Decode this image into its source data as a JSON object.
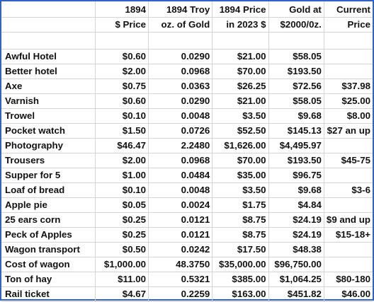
{
  "header": {
    "row1": [
      "",
      "1894",
      "1894 Troy",
      "1894 Price",
      "Gold at",
      "Current"
    ],
    "row2": [
      "",
      "$ Price",
      "oz. of Gold",
      "in 2023 $",
      "$2000/0z.",
      "Price"
    ]
  },
  "rows": [
    {
      "item": "Awful Hotel",
      "price_1894": "$0.60",
      "troy_oz": "0.0290",
      "price_2023": "$21.00",
      "gold_value": "$58.05",
      "current": ""
    },
    {
      "item": "Better hotel",
      "price_1894": "$2.00",
      "troy_oz": "0.0968",
      "price_2023": "$70.00",
      "gold_value": "$193.50",
      "current": ""
    },
    {
      "item": "Axe",
      "price_1894": "$0.75",
      "troy_oz": "0.0363",
      "price_2023": "$26.25",
      "gold_value": "$72.56",
      "current": "$37.98"
    },
    {
      "item": "Varnish",
      "price_1894": "$0.60",
      "troy_oz": "0.0290",
      "price_2023": "$21.00",
      "gold_value": "$58.05",
      "current": "$25.00"
    },
    {
      "item": "Trowel",
      "price_1894": "$0.10",
      "troy_oz": "0.0048",
      "price_2023": "$3.50",
      "gold_value": "$9.68",
      "current": "$8.00"
    },
    {
      "item": "Pocket watch",
      "price_1894": "$1.50",
      "troy_oz": "0.0726",
      "price_2023": "$52.50",
      "gold_value": "$145.13",
      "current": "$27 an up"
    },
    {
      "item": "Photography",
      "price_1894": "$46.47",
      "troy_oz": "2.2480",
      "price_2023": "$1,626.00",
      "gold_value": "$4,495.97",
      "current": ""
    },
    {
      "item": "Trousers",
      "price_1894": "$2.00",
      "troy_oz": "0.0968",
      "price_2023": "$70.00",
      "gold_value": "$193.50",
      "current": "$45-75"
    },
    {
      "item": "Supper for 5",
      "price_1894": "$1.00",
      "troy_oz": "0.0484",
      "price_2023": "$35.00",
      "gold_value": "$96.75",
      "current": ""
    },
    {
      "item": "Loaf of bread",
      "price_1894": "$0.10",
      "troy_oz": "0.0048",
      "price_2023": "$3.50",
      "gold_value": "$9.68",
      "current": "$3-6"
    },
    {
      "item": "Apple pie",
      "price_1894": "$0.05",
      "troy_oz": "0.0024",
      "price_2023": "$1.75",
      "gold_value": "$4.84",
      "current": ""
    },
    {
      "item": "25 ears corn",
      "price_1894": "$0.25",
      "troy_oz": "0.0121",
      "price_2023": "$8.75",
      "gold_value": "$24.19",
      "current": "$9 and up"
    },
    {
      "item": "Peck of Apples",
      "price_1894": "$0.25",
      "troy_oz": "0.0121",
      "price_2023": "$8.75",
      "gold_value": "$24.19",
      "current": "$15-18+"
    },
    {
      "item": "Wagon transport",
      "price_1894": "$0.50",
      "troy_oz": "0.0242",
      "price_2023": "$17.50",
      "gold_value": "$48.38",
      "current": ""
    },
    {
      "item": "Cost of wagon",
      "price_1894": "$1,000.00",
      "troy_oz": "48.3750",
      "price_2023": "$35,000.00",
      "gold_value": "$96,750.00",
      "current": ""
    },
    {
      "item": "Ton of hay",
      "price_1894": "$11.00",
      "troy_oz": "0.5321",
      "price_2023": "$385.00",
      "gold_value": "$1,064.25",
      "current": "$80-180"
    },
    {
      "item": "Rail ticket",
      "price_1894": "$4.67",
      "troy_oz": "0.2259",
      "price_2023": "$163.00",
      "gold_value": "$451.82",
      "current": "$46.00"
    }
  ]
}
